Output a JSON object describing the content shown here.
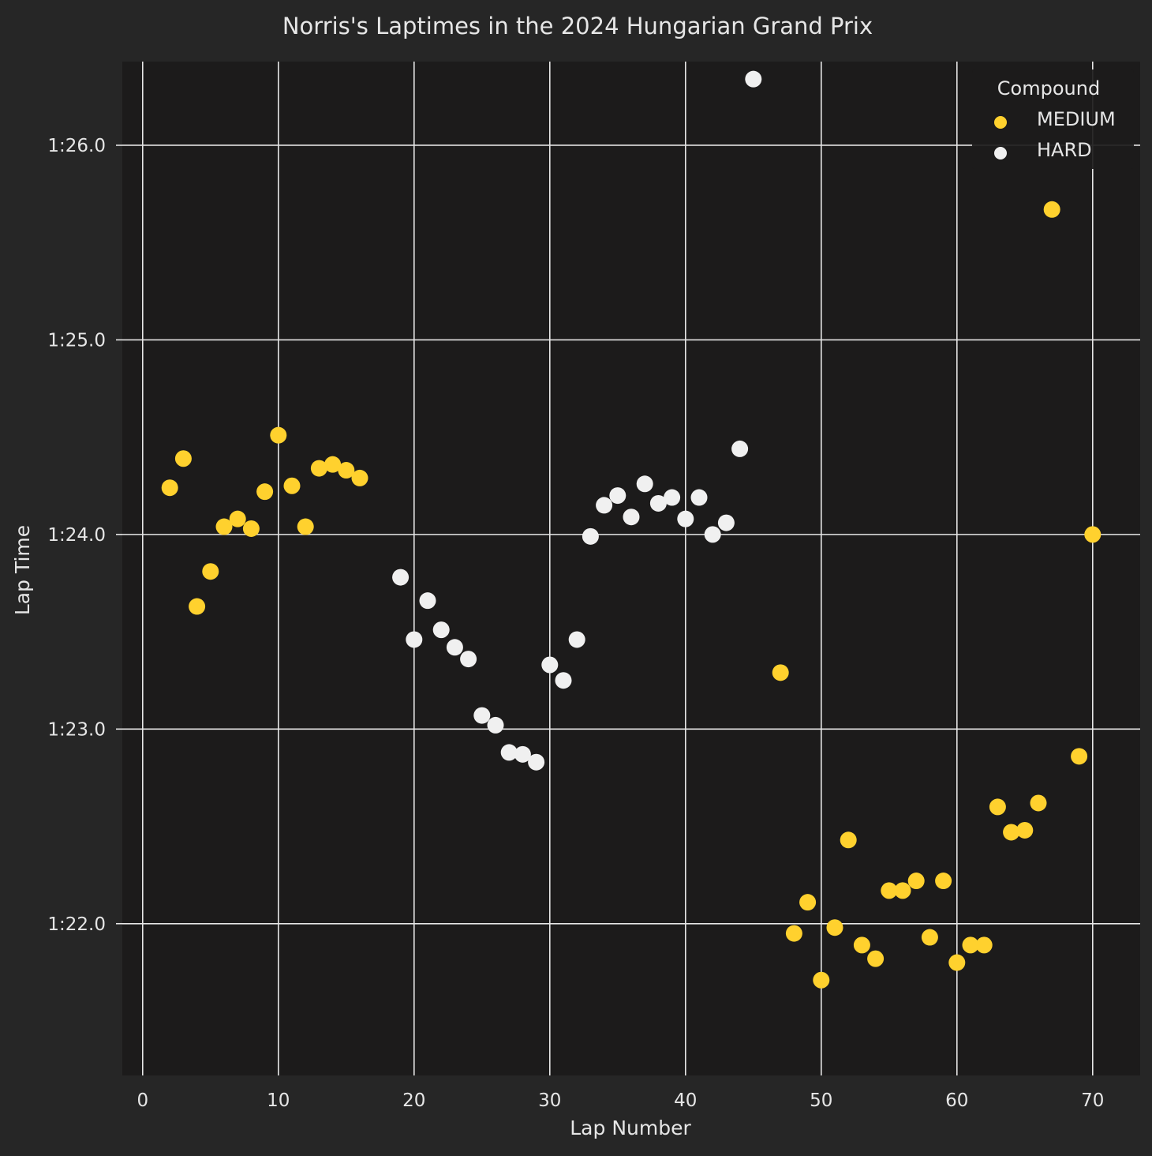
{
  "chart_data": {
    "type": "scatter",
    "title": "Norris's Laptimes in the 2024 Hungarian Grand Prix",
    "xlabel": "Lap Number",
    "ylabel": "Lap Time",
    "xlim": [
      -1.5,
      73.5
    ],
    "ylim": [
      81.22,
      86.43
    ],
    "xticks": [
      0,
      10,
      20,
      30,
      40,
      50,
      60,
      70
    ],
    "xtick_labels": [
      "0",
      "10",
      "20",
      "30",
      "40",
      "50",
      "60",
      "70"
    ],
    "yticks": [
      82,
      83,
      84,
      85,
      86
    ],
    "ytick_labels": [
      "1:22.0",
      "1:23.0",
      "1:24.0",
      "1:25.0",
      "1:26.0"
    ],
    "grid": true,
    "legend": {
      "title": "Compound",
      "position": "top-right"
    },
    "series": [
      {
        "name": "MEDIUM",
        "color": "#ffd12e",
        "points": [
          [
            2,
            84.24
          ],
          [
            3,
            84.39
          ],
          [
            4,
            83.63
          ],
          [
            5,
            83.81
          ],
          [
            6,
            84.04
          ],
          [
            7,
            84.08
          ],
          [
            8,
            84.03
          ],
          [
            9,
            84.22
          ],
          [
            10,
            84.51
          ],
          [
            11,
            84.25
          ],
          [
            12,
            84.04
          ],
          [
            13,
            84.34
          ],
          [
            14,
            84.36
          ],
          [
            15,
            84.33
          ],
          [
            16,
            84.29
          ],
          [
            47,
            83.29
          ],
          [
            48,
            81.95
          ],
          [
            49,
            82.11
          ],
          [
            50,
            81.71
          ],
          [
            51,
            81.98
          ],
          [
            52,
            82.43
          ],
          [
            53,
            81.89
          ],
          [
            54,
            81.82
          ],
          [
            55,
            82.17
          ],
          [
            56,
            82.17
          ],
          [
            57,
            82.22
          ],
          [
            58,
            81.93
          ],
          [
            59,
            82.22
          ],
          [
            60,
            81.8
          ],
          [
            61,
            81.89
          ],
          [
            62,
            81.89
          ],
          [
            63,
            82.6
          ],
          [
            64,
            82.47
          ],
          [
            65,
            82.48
          ],
          [
            66,
            82.62
          ],
          [
            67,
            85.67
          ],
          [
            69,
            82.86
          ],
          [
            70,
            84.0
          ]
        ]
      },
      {
        "name": "HARD",
        "color": "#f0f0f0",
        "points": [
          [
            19,
            83.78
          ],
          [
            20,
            83.46
          ],
          [
            21,
            83.66
          ],
          [
            22,
            83.51
          ],
          [
            23,
            83.42
          ],
          [
            24,
            83.36
          ],
          [
            25,
            83.07
          ],
          [
            26,
            83.02
          ],
          [
            27,
            82.88
          ],
          [
            28,
            82.87
          ],
          [
            29,
            82.83
          ],
          [
            30,
            83.33
          ],
          [
            31,
            83.25
          ],
          [
            32,
            83.46
          ],
          [
            33,
            83.99
          ],
          [
            34,
            84.15
          ],
          [
            35,
            84.2
          ],
          [
            36,
            84.09
          ],
          [
            37,
            84.26
          ],
          [
            38,
            84.16
          ],
          [
            39,
            84.19
          ],
          [
            40,
            84.08
          ],
          [
            41,
            84.19
          ],
          [
            42,
            84.0
          ],
          [
            43,
            84.06
          ],
          [
            44,
            84.44
          ],
          [
            45,
            86.34
          ]
        ]
      }
    ]
  },
  "colors": {
    "figure_bg": "#262626",
    "axes_bg": "#1c1b1b",
    "grid": "#e6e6e6",
    "text": "#e6e6e6"
  }
}
